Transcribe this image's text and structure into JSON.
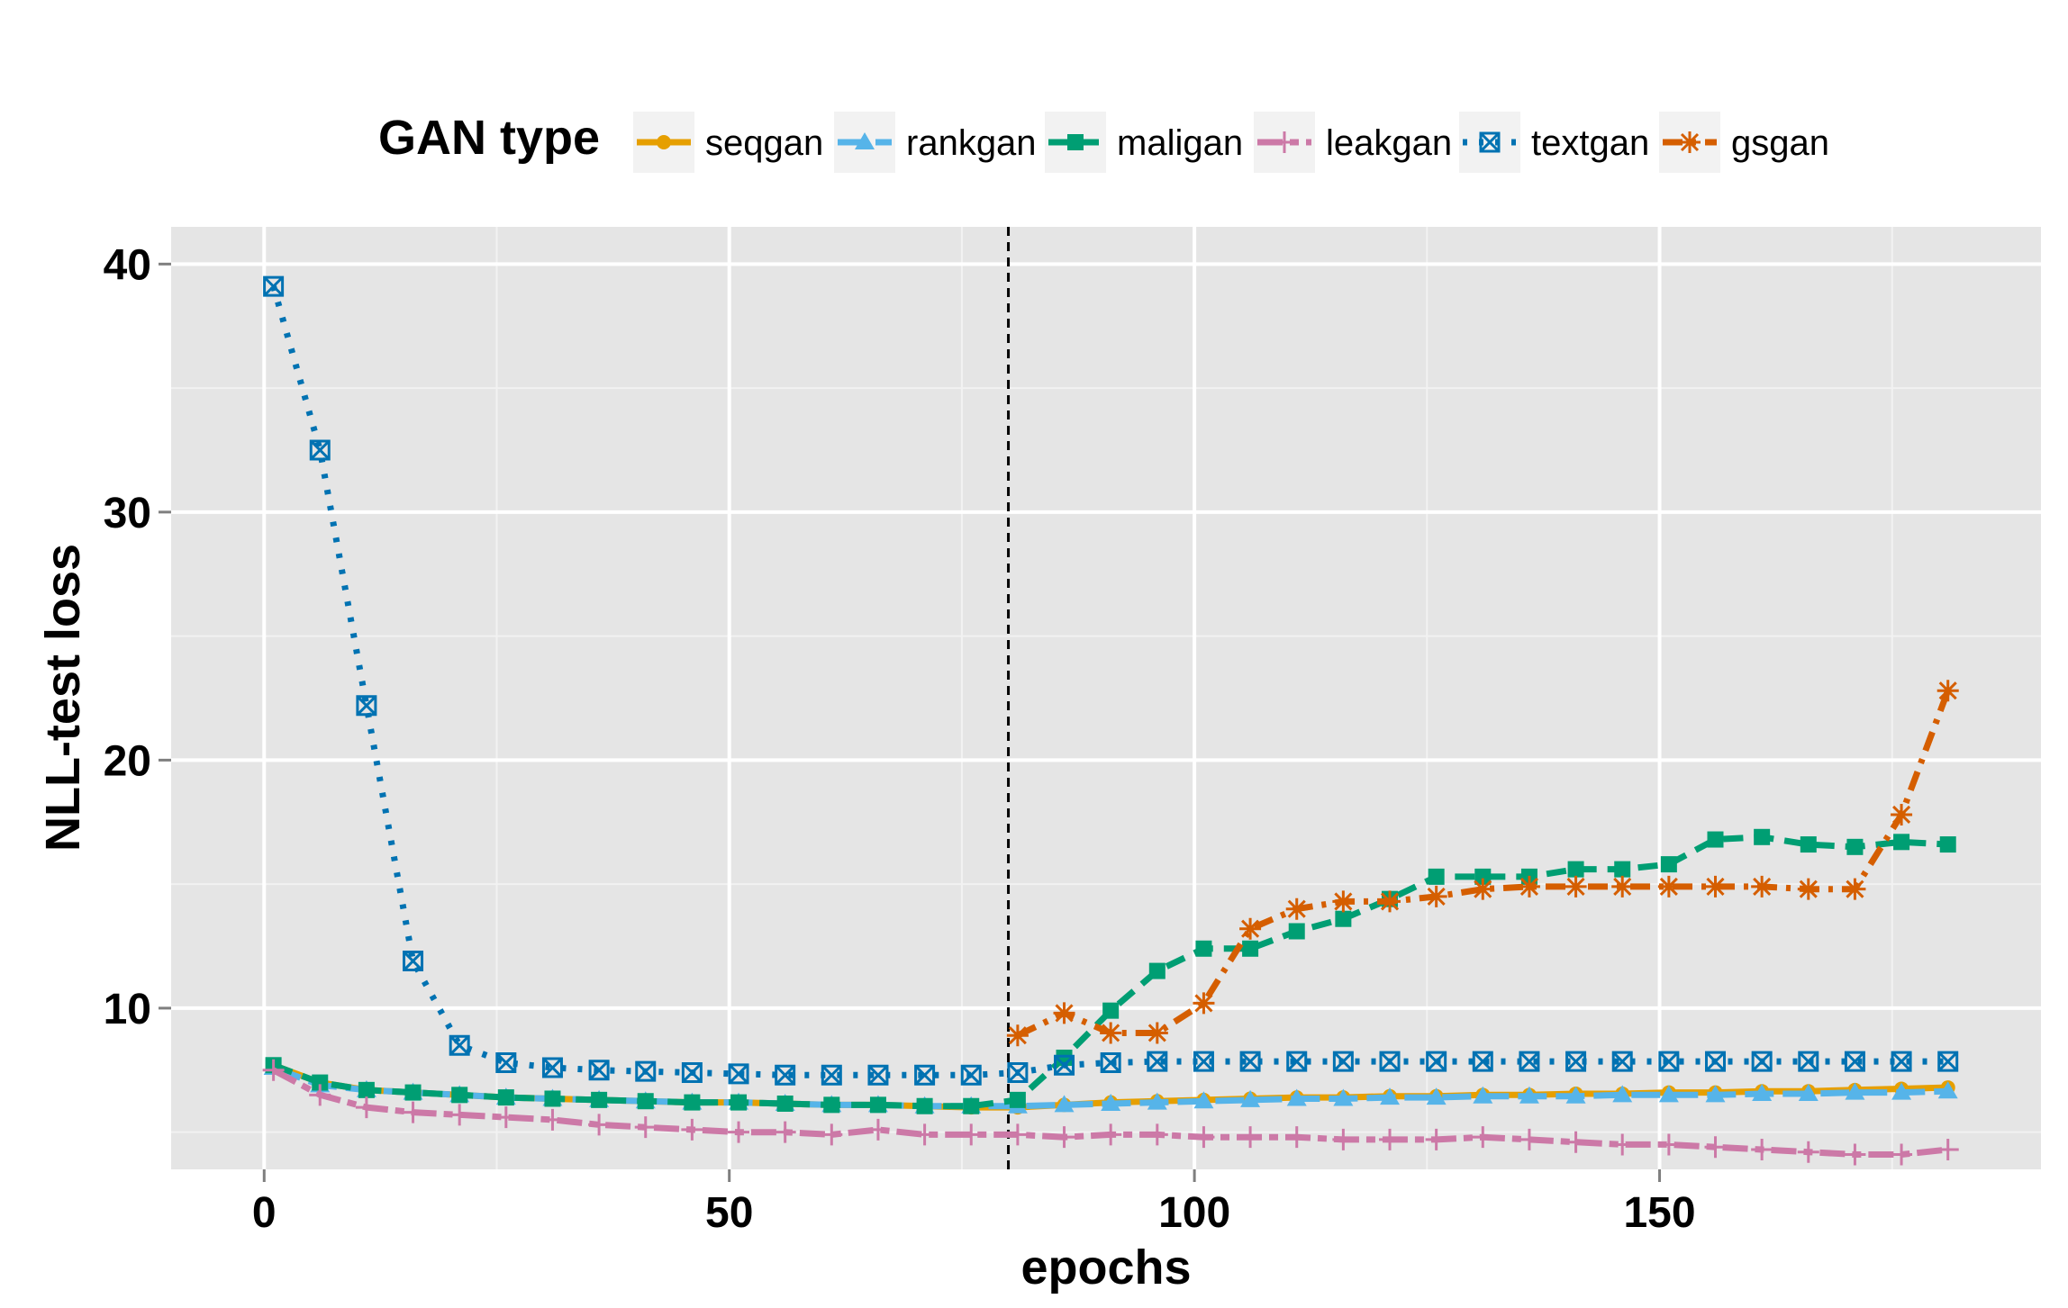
{
  "chart_data": {
    "type": "line",
    "xlabel": "epochs",
    "ylabel": "NLL-test loss",
    "xlim": [
      -10,
      191
    ],
    "ylim": [
      3.5,
      41.5
    ],
    "x_ticks": [
      "0",
      "50",
      "100",
      "150"
    ],
    "y_ticks": [
      "10",
      "20",
      "30",
      "40"
    ],
    "grid": true,
    "legend_title": "GAN type",
    "legend_position": "top",
    "reference_line_x": 80,
    "series": [
      {
        "name": "seqgan",
        "color": "#E69F00",
        "marker": "circle",
        "dash": "solid",
        "x": [
          1,
          6,
          11,
          16,
          21,
          26,
          31,
          36,
          41,
          46,
          51,
          56,
          61,
          66,
          71,
          76,
          81,
          86,
          91,
          96,
          101,
          106,
          111,
          116,
          121,
          126,
          131,
          136,
          141,
          146,
          151,
          156,
          161,
          166,
          171,
          176,
          181
        ],
        "y": [
          7.7,
          7.0,
          6.7,
          6.6,
          6.5,
          6.4,
          6.35,
          6.3,
          6.25,
          6.2,
          6.2,
          6.15,
          6.1,
          6.1,
          6.05,
          6.0,
          6.0,
          6.1,
          6.2,
          6.25,
          6.3,
          6.35,
          6.4,
          6.4,
          6.45,
          6.45,
          6.5,
          6.5,
          6.55,
          6.55,
          6.6,
          6.6,
          6.65,
          6.65,
          6.7,
          6.75,
          6.8
        ]
      },
      {
        "name": "rankgan",
        "color": "#56B4E9",
        "marker": "triangle",
        "dash": "longdash",
        "x": [
          1,
          6,
          11,
          16,
          21,
          26,
          31,
          36,
          41,
          46,
          51,
          56,
          61,
          66,
          71,
          76,
          81,
          86,
          91,
          96,
          101,
          106,
          111,
          116,
          121,
          126,
          131,
          136,
          141,
          146,
          151,
          156,
          161,
          166,
          171,
          176,
          181
        ],
        "y": [
          7.6,
          6.9,
          6.7,
          6.6,
          6.5,
          6.4,
          6.35,
          6.3,
          6.25,
          6.2,
          6.2,
          6.15,
          6.1,
          6.1,
          6.05,
          6.05,
          6.05,
          6.1,
          6.15,
          6.2,
          6.25,
          6.3,
          6.35,
          6.35,
          6.4,
          6.4,
          6.45,
          6.45,
          6.45,
          6.5,
          6.5,
          6.5,
          6.55,
          6.55,
          6.6,
          6.6,
          6.65
        ]
      },
      {
        "name": "maligan",
        "color": "#009E73",
        "marker": "square",
        "dash": "dashed",
        "x": [
          1,
          6,
          11,
          16,
          21,
          26,
          31,
          36,
          41,
          46,
          51,
          56,
          61,
          66,
          71,
          76,
          81,
          86,
          91,
          96,
          101,
          106,
          111,
          116,
          121,
          126,
          131,
          136,
          141,
          146,
          151,
          156,
          161,
          166,
          171,
          176,
          181
        ],
        "y": [
          7.7,
          7.0,
          6.7,
          6.6,
          6.5,
          6.4,
          6.35,
          6.3,
          6.25,
          6.2,
          6.2,
          6.15,
          6.1,
          6.1,
          6.05,
          6.05,
          6.3,
          8.0,
          9.9,
          11.5,
          12.4,
          12.4,
          13.1,
          13.6,
          14.4,
          15.3,
          15.3,
          15.3,
          15.6,
          15.6,
          15.8,
          16.8,
          16.9,
          16.6,
          16.5,
          16.7,
          16.6
        ]
      },
      {
        "name": "leakgan",
        "color": "#CC79A7",
        "marker": "plus",
        "dash": "twodash",
        "x": [
          1,
          6,
          11,
          16,
          21,
          26,
          31,
          36,
          41,
          46,
          51,
          56,
          61,
          66,
          71,
          76,
          81,
          86,
          91,
          96,
          101,
          106,
          111,
          116,
          121,
          126,
          131,
          136,
          141,
          146,
          151,
          156,
          161,
          166,
          171,
          176,
          181
        ],
        "y": [
          7.5,
          6.5,
          6.0,
          5.8,
          5.7,
          5.6,
          5.5,
          5.3,
          5.2,
          5.1,
          5.0,
          5.0,
          4.9,
          5.1,
          4.9,
          4.9,
          4.9,
          4.8,
          4.9,
          4.9,
          4.8,
          4.8,
          4.8,
          4.7,
          4.7,
          4.7,
          4.8,
          4.7,
          4.6,
          4.5,
          4.5,
          4.4,
          4.3,
          4.2,
          4.1,
          4.1,
          4.3
        ]
      },
      {
        "name": "textgan",
        "color": "#0072B2",
        "marker": "square-x",
        "dash": "dotted",
        "x": [
          1,
          6,
          11,
          16,
          21,
          26,
          31,
          36,
          41,
          46,
          51,
          56,
          61,
          66,
          71,
          76,
          81,
          86,
          91,
          96,
          101,
          106,
          111,
          116,
          121,
          126,
          131,
          136,
          141,
          146,
          151,
          156,
          161,
          166,
          171,
          176,
          181
        ],
        "y": [
          39.1,
          32.5,
          22.2,
          11.9,
          8.5,
          7.8,
          7.6,
          7.5,
          7.45,
          7.4,
          7.35,
          7.3,
          7.3,
          7.3,
          7.3,
          7.3,
          7.4,
          7.7,
          7.8,
          7.85,
          7.85,
          7.85,
          7.85,
          7.85,
          7.85,
          7.85,
          7.85,
          7.85,
          7.85,
          7.85,
          7.85,
          7.85,
          7.85,
          7.85,
          7.85,
          7.85,
          7.85
        ]
      },
      {
        "name": "gsgan",
        "color": "#D55E00",
        "marker": "asterisk",
        "dash": "dotdash",
        "x": [
          81,
          86,
          91,
          96,
          101,
          106,
          111,
          116,
          121,
          126,
          131,
          136,
          141,
          146,
          151,
          156,
          161,
          166,
          171,
          176,
          181
        ],
        "y": [
          8.9,
          9.8,
          9.0,
          9.0,
          10.2,
          13.2,
          14.0,
          14.3,
          14.3,
          14.5,
          14.8,
          14.9,
          14.9,
          14.9,
          14.9,
          14.9,
          14.9,
          14.8,
          14.8,
          17.8,
          22.8
        ]
      }
    ]
  }
}
